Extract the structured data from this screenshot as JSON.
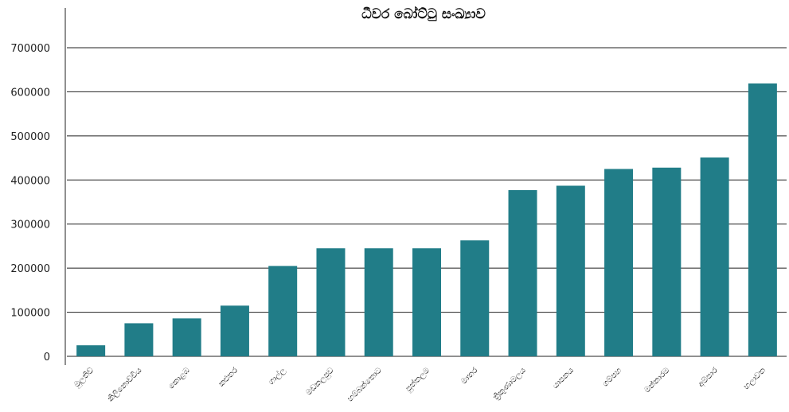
{
  "chart_data": {
    "type": "bar",
    "title": "ධීවර බෝට්ටු සංඛ්‍යාව",
    "xlabel": "",
    "ylabel": "",
    "categories": [
      "මුලතිව්",
      "කිලිනොච්චිය",
      "කොළඹ",
      "කළුතර",
      "ගාල්ල",
      "මඩකලපුව",
      "හම්බන්තොට",
      "පුත්තලම",
      "මාතර",
      "ත්‍රිකුණාමලය",
      "යාපනය",
      "ගම්පහ",
      "මන්නාරම",
      "අම්පාර",
      "හලාවත"
    ],
    "values": [
      25000,
      75000,
      86000,
      115000,
      205000,
      245000,
      245000,
      245000,
      263000,
      377000,
      387000,
      425000,
      428000,
      451000,
      619000
    ],
    "ylim": [
      0,
      750000
    ],
    "yticks": [
      0,
      100000,
      200000,
      300000,
      400000,
      500000,
      600000,
      700000
    ],
    "grid": true,
    "bar_color": "#217d88"
  }
}
